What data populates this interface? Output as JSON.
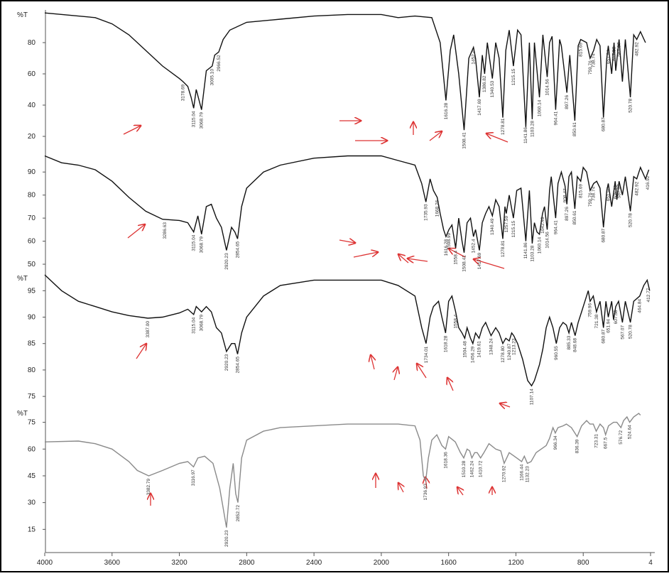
{
  "chart_data": [
    {
      "type": "line",
      "y_label": "%T",
      "color": "#111111",
      "xlim": [
        4000,
        400
      ],
      "ylim": [
        15,
        100
      ],
      "yticks": [
        20,
        40,
        60,
        80
      ],
      "x": [
        4000,
        3800,
        3700,
        3600,
        3500,
        3400,
        3300,
        3200,
        3178,
        3150,
        3130,
        3115,
        3100,
        3068,
        3040,
        3005,
        2990,
        2966,
        2940,
        2900,
        2800,
        2600,
        2400,
        2200,
        2000,
        1900,
        1800,
        1700,
        1650,
        1616,
        1590,
        1570,
        1540,
        1508,
        1480,
        1452,
        1440,
        1417,
        1400,
        1386,
        1370,
        1340,
        1320,
        1300,
        1278,
        1260,
        1240,
        1215,
        1190,
        1170,
        1141,
        1120,
        1103,
        1090,
        1060,
        1040,
        1014,
        1000,
        985,
        964,
        940,
        930,
        897,
        880,
        850,
        830,
        815,
        780,
        759,
        738,
        720,
        700,
        680,
        660,
        651,
        631,
        617,
        607,
        587,
        567,
        550,
        520,
        500,
        482,
        460,
        430
      ],
      "values": [
        99,
        97,
        96,
        92,
        85,
        75,
        65,
        57,
        55,
        52,
        45,
        38,
        50,
        37,
        62,
        65,
        72,
        74,
        82,
        88,
        93,
        95,
        97,
        98,
        98,
        96,
        97,
        96,
        80,
        43,
        75,
        85,
        60,
        24,
        70,
        77,
        70,
        45,
        72,
        60,
        80,
        57,
        80,
        70,
        32,
        75,
        88,
        65,
        88,
        85,
        26,
        80,
        31,
        80,
        45,
        85,
        58,
        80,
        84,
        37,
        82,
        78,
        48,
        72,
        30,
        78,
        82,
        80,
        70,
        75,
        82,
        78,
        32,
        70,
        78,
        60,
        80,
        62,
        82,
        55,
        82,
        45,
        85,
        82,
        87,
        80
      ],
      "peaks": [
        3178.69,
        3115.04,
        3068.79,
        {
          "value": 3005.1,
          "label": "3005.10"
        },
        2966.52,
        1616.28,
        1508.41,
        1452.4,
        1417.69,
        1386.82,
        1340.53,
        1278.81,
        1215.15,
        1141.86,
        1103.28,
        1060.14,
        1014.56,
        964.41,
        897.26,
        850.61,
        815.69,
        759.76,
        738.74,
        680.87,
        651.94,
        617.58,
        587.07,
        520.78,
        482.92
      ]
    },
    {
      "type": "line",
      "color": "#111111",
      "xlim": [
        4000,
        400
      ],
      "ylim": [
        46,
        99
      ],
      "yticks": [
        50,
        60,
        70,
        80,
        90
      ],
      "x": [
        4000,
        3900,
        3800,
        3700,
        3600,
        3500,
        3400,
        3300,
        3200,
        3150,
        3115,
        3090,
        3068,
        3040,
        3010,
        2980,
        2950,
        2920,
        2890,
        2870,
        2854,
        2830,
        2800,
        2700,
        2600,
        2400,
        2200,
        2000,
        1900,
        1800,
        1760,
        1735,
        1710,
        1690,
        1668,
        1650,
        1630,
        1616,
        1598,
        1580,
        1558,
        1540,
        1520,
        1508,
        1490,
        1470,
        1452,
        1440,
        1417,
        1400,
        1380,
        1360,
        1340,
        1320,
        1300,
        1278,
        1265,
        1257,
        1240,
        1215,
        1195,
        1170,
        1141,
        1120,
        1103,
        1090,
        1075,
        1060,
        1042,
        1030,
        1014,
        1000,
        990,
        964,
        950,
        930,
        908,
        897,
        885,
        870,
        850,
        835,
        815,
        800,
        780,
        759,
        738,
        720,
        700,
        680,
        660,
        651,
        631,
        610,
        600,
        587,
        567,
        550,
        520,
        500,
        482,
        460,
        430,
        410
      ],
      "values": [
        97,
        94,
        93,
        91,
        86,
        79,
        73,
        69.5,
        69,
        68,
        64,
        71,
        63,
        75,
        76,
        70,
        66,
        56,
        66,
        64,
        61,
        75,
        83,
        90,
        93,
        96,
        97,
        97,
        95,
        93,
        85,
        77,
        87,
        82,
        79,
        72,
        65,
        62,
        65,
        67,
        57,
        70,
        60,
        55,
        68,
        70,
        62,
        65,
        56,
        68,
        72,
        75,
        71,
        78,
        75,
        61,
        75,
        72,
        80,
        70,
        82,
        83,
        60,
        82,
        59,
        68,
        64,
        63,
        72,
        75,
        65,
        82,
        88,
        70,
        85,
        90,
        84,
        76,
        88,
        90,
        74,
        88,
        86,
        92,
        90,
        82,
        85,
        86,
        83,
        66,
        82,
        85,
        75,
        86,
        78,
        86,
        80,
        88,
        73,
        88,
        87,
        92,
        87,
        91
      ],
      "peaks": [
        3286.63,
        3115.04,
        3068.79,
        2920.23,
        2854.65,
        1735.93,
        1668.26,
        1616.28,
        1598.99,
        1558.4,
        1508.41,
        1452.4,
        1417.69,
        1340.49,
        1278.81,
        1257.59,
        1215.15,
        1141.86,
        1103.28,
        1060.14,
        1042.49,
        1014.56,
        964.41,
        908.47,
        897.26,
        850.61,
        815.69,
        759.76,
        738.74,
        680.87,
        651.94,
        609.51,
        587.07,
        520.78,
        482.92,
        416.92
      ]
    },
    {
      "type": "line",
      "y_label": "%T",
      "color": "#111111",
      "xlim": [
        4000,
        400
      ],
      "ylim": [
        73,
        98
      ],
      "yticks": [
        75,
        80,
        85,
        90,
        95
      ],
      "x": [
        4000,
        3900,
        3800,
        3700,
        3600,
        3500,
        3387,
        3300,
        3200,
        3150,
        3115,
        3100,
        3068,
        3040,
        3010,
        2980,
        2950,
        2920,
        2890,
        2870,
        2854,
        2830,
        2800,
        2700,
        2600,
        2400,
        2200,
        2000,
        1900,
        1800,
        1760,
        1734,
        1710,
        1690,
        1660,
        1640,
        1618,
        1600,
        1580,
        1558,
        1540,
        1520,
        1504,
        1490,
        1470,
        1456,
        1440,
        1419,
        1400,
        1380,
        1348,
        1320,
        1300,
        1278,
        1260,
        1240,
        1225,
        1213,
        1190,
        1160,
        1130,
        1107,
        1090,
        1060,
        1040,
        1020,
        1000,
        980,
        960,
        940,
        920,
        900,
        885,
        870,
        848,
        830,
        810,
        790,
        770,
        759,
        740,
        721,
        700,
        680,
        665,
        651,
        631,
        620,
        607,
        590,
        567,
        550,
        520,
        500,
        464,
        440,
        420,
        405
      ],
      "values": [
        98,
        95,
        93,
        92,
        91,
        90.3,
        89.8,
        90,
        90.8,
        91.5,
        90.5,
        92,
        91,
        92,
        91,
        88,
        87,
        83.5,
        85,
        85,
        83,
        87,
        90,
        94,
        96,
        97,
        97,
        97,
        96,
        94,
        88,
        85,
        90,
        92,
        93,
        90,
        87,
        93,
        94,
        91,
        88,
        87,
        86,
        88,
        86,
        85,
        87,
        86,
        88,
        89,
        86.5,
        88,
        87,
        85,
        86,
        85.5,
        87,
        86.5,
        85,
        82,
        78,
        77,
        78,
        81,
        84,
        88,
        90,
        88,
        85,
        88,
        89,
        88.5,
        87,
        89,
        86.5,
        89,
        91,
        93,
        95,
        93,
        94,
        91,
        93,
        88,
        93,
        90,
        93,
        89.5,
        92,
        93,
        89,
        93,
        89,
        93,
        94,
        96,
        97,
        95
      ],
      "peaks": [
        {
          "value": 3387,
          "label": "3387.00"
        },
        3115.04,
        3068.79,
        2920.23,
        2854.65,
        1734.01,
        1618.28,
        1558.4,
        1504.48,
        1456.29,
        1419.61,
        1348.24,
        {
          "value": 1278.8,
          "label": "1278.80"
        },
        1240.87,
        1213.23,
        1107.14,
        960.55,
        885.33,
        848.68,
        759.96,
        721.38,
        680.87,
        651.94,
        607.58,
        567.07,
        520.78,
        464.84,
        412.77
      ]
    },
    {
      "type": "line",
      "y_label": "%T",
      "color": "#8a8a8a",
      "xlim": [
        4000,
        400
      ],
      "ylim": [
        2,
        82
      ],
      "yticks": [
        15,
        30,
        45,
        60,
        75
      ],
      "xticks": [
        4000,
        3600,
        3200,
        2800,
        2400,
        2000,
        1600,
        1200,
        800,
        {
          "value": 400,
          "label": "4"
        }
      ],
      "x": [
        4000,
        3800,
        3700,
        3600,
        3500,
        3450,
        3382,
        3300,
        3200,
        3150,
        3116,
        3090,
        3050,
        3000,
        2960,
        2940,
        2920,
        2900,
        2880,
        2865,
        2852,
        2830,
        2800,
        2700,
        2600,
        2400,
        2200,
        2000,
        1900,
        1800,
        1770,
        1750,
        1736,
        1720,
        1700,
        1670,
        1640,
        1618,
        1600,
        1560,
        1530,
        1510,
        1490,
        1475,
        1462,
        1445,
        1430,
        1410,
        1390,
        1360,
        1320,
        1290,
        1270,
        1240,
        1210,
        1180,
        1166,
        1150,
        1132,
        1110,
        1080,
        1050,
        1020,
        1000,
        980,
        966,
        950,
        920,
        900,
        870,
        836,
        810,
        780,
        760,
        740,
        723,
        700,
        680,
        667,
        650,
        620,
        600,
        576,
        560,
        540,
        524,
        500,
        470,
        460
      ],
      "values": [
        64,
        64.5,
        63,
        60,
        53,
        48,
        45,
        48,
        52,
        53,
        50,
        55,
        56,
        52,
        38,
        27,
        16,
        38,
        52,
        35,
        30,
        55,
        65,
        70,
        72,
        73,
        74,
        74,
        74,
        73,
        65,
        45,
        42,
        55,
        65,
        68,
        62,
        60,
        67,
        64,
        58,
        55,
        60,
        59,
        55,
        58,
        58,
        55,
        58,
        63,
        60,
        59,
        52,
        58,
        56,
        54,
        53,
        56,
        52,
        53,
        58,
        60,
        62,
        66,
        72,
        69,
        72,
        73,
        74,
        72,
        67,
        73,
        76,
        74,
        74,
        70,
        74,
        72,
        68,
        73,
        75,
        75,
        72,
        76,
        78,
        75,
        78,
        80,
        79
      ],
      "peaks": [
        3382.79,
        3116.97,
        2920.23,
        2852.72,
        1736.93,
        1618.36,
        1510.28,
        1462.24,
        1410.72,
        1270.92,
        1166.44,
        1132.23,
        966.34,
        836.39,
        723.31,
        667.5,
        576.72,
        524.64
      ]
    }
  ]
}
